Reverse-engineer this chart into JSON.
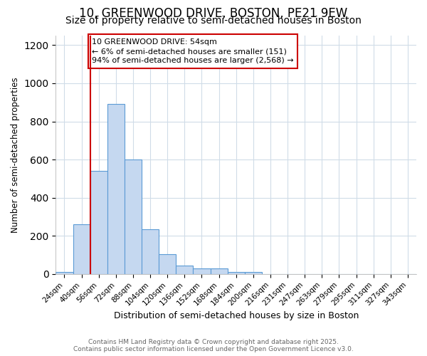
{
  "title1": "10, GREENWOOD DRIVE, BOSTON, PE21 9EW",
  "title2": "Size of property relative to semi-detached houses in Boston",
  "xlabel": "Distribution of semi-detached houses by size in Boston",
  "ylabel": "Number of semi-detached properties",
  "categories": [
    "24sqm",
    "40sqm",
    "56sqm",
    "72sqm",
    "88sqm",
    "104sqm",
    "120sqm",
    "136sqm",
    "152sqm",
    "168sqm",
    "184sqm",
    "200sqm",
    "216sqm",
    "231sqm",
    "247sqm",
    "263sqm",
    "279sqm",
    "295sqm",
    "311sqm",
    "327sqm",
    "343sqm"
  ],
  "values": [
    10,
    260,
    540,
    890,
    600,
    235,
    105,
    45,
    30,
    30,
    12,
    10,
    0,
    0,
    0,
    0,
    0,
    0,
    0,
    0,
    0
  ],
  "bar_color": "#c5d8f0",
  "bar_edge_color": "#5b9bd5",
  "property_line_index": 2,
  "property_line_color": "#cc0000",
  "annotation_title": "10 GREENWOOD DRIVE: 54sqm",
  "annotation_line1": "← 6% of semi-detached houses are smaller (151)",
  "annotation_line2": "94% of semi-detached houses are larger (2,568) →",
  "annotation_box_edgecolor": "#cc0000",
  "footer1": "Contains HM Land Registry data © Crown copyright and database right 2025.",
  "footer2": "Contains public sector information licensed under the Open Government Licence v3.0.",
  "ylim": [
    0,
    1250
  ],
  "yticks": [
    0,
    200,
    400,
    600,
    800,
    1000,
    1200
  ],
  "bg_color": "#ffffff",
  "grid_color": "#d0dce8",
  "title1_fontsize": 12,
  "title2_fontsize": 10
}
